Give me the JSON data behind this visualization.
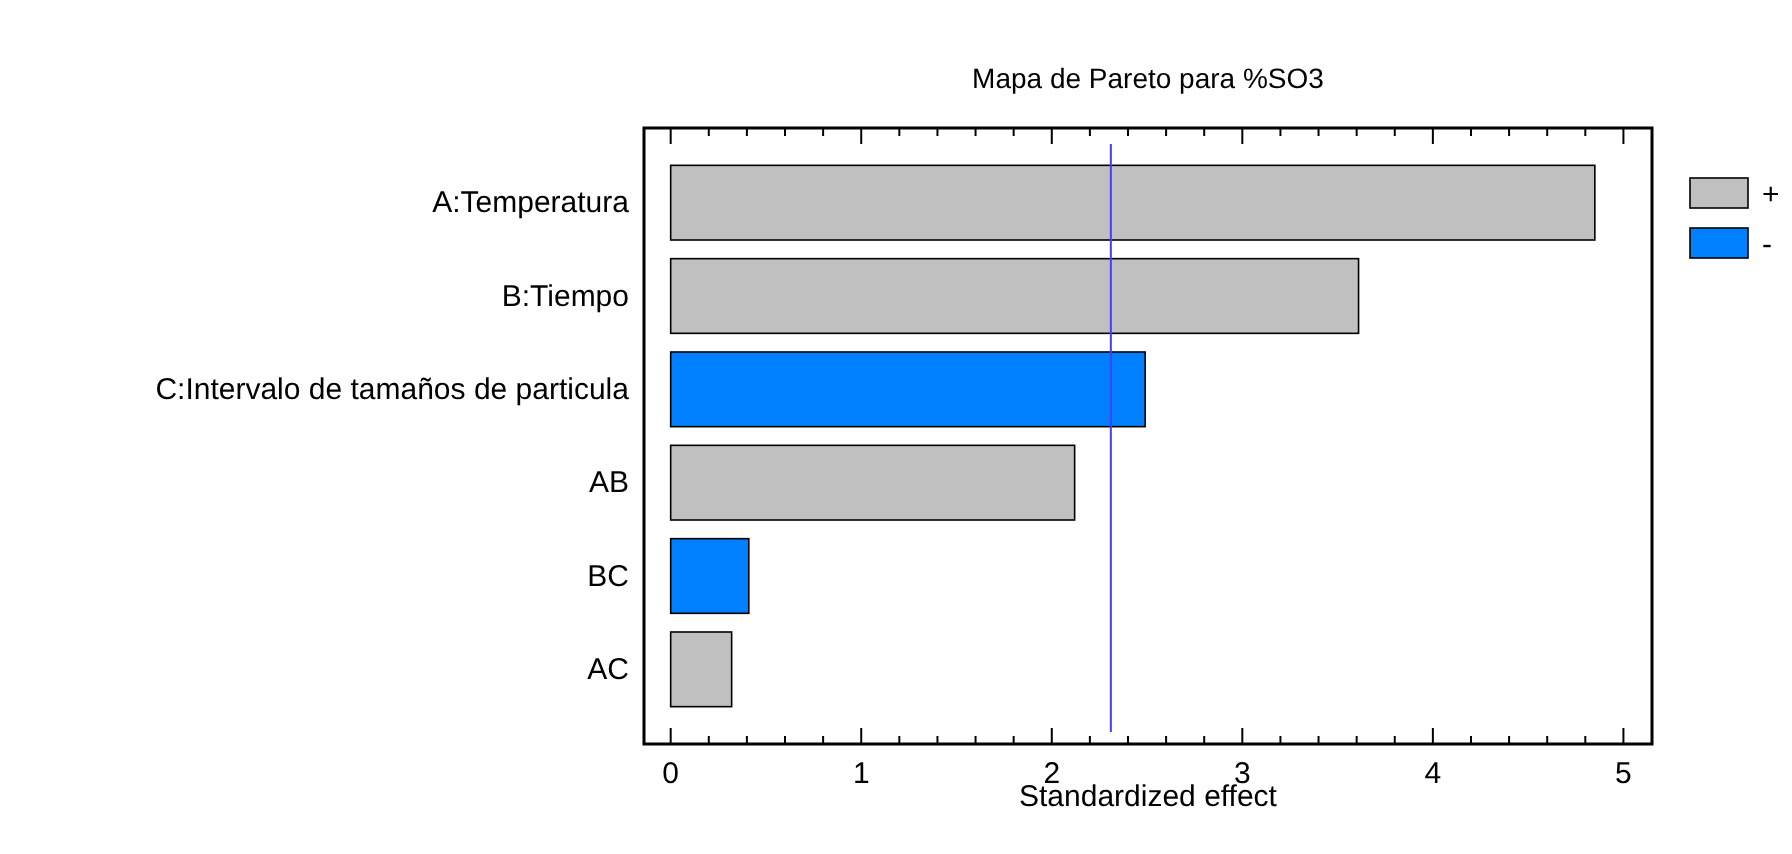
{
  "chart_data": {
    "type": "bar",
    "orientation": "horizontal",
    "title": "Mapa de Pareto para %SO3",
    "xlabel": "Standardized effect",
    "categories": [
      "A:Temperatura",
      "B:Tiempo",
      "C:Intervalo de tamaños de particula",
      "AB",
      "BC",
      "AC"
    ],
    "series": [
      {
        "name": "+",
        "color": "#c0c0c0",
        "values": [
          4.85,
          3.61,
          null,
          2.12,
          null,
          0.32
        ]
      },
      {
        "name": "-",
        "color": "#0080ff",
        "values": [
          null,
          null,
          2.49,
          null,
          0.41,
          null
        ]
      }
    ],
    "xlim": [
      -0.14,
      5.15
    ],
    "xticks": [
      0,
      {
        "value": 0.2,
        "label": null
      },
      {
        "value": 0.4,
        "label": null
      },
      {
        "value": 0.6,
        "label": null
      },
      {
        "value": 0.8,
        "label": null
      },
      1,
      {
        "value": 1.2,
        "label": null
      },
      {
        "value": 1.4,
        "label": null
      },
      {
        "value": 1.6,
        "label": null
      },
      {
        "value": 1.8,
        "label": null
      },
      2,
      {
        "value": 2.2,
        "label": null
      },
      {
        "value": 2.4,
        "label": null
      },
      {
        "value": 2.6,
        "label": null
      },
      {
        "value": 2.8,
        "label": null
      },
      3,
      {
        "value": 3.2,
        "label": null
      },
      {
        "value": 3.4,
        "label": null
      },
      {
        "value": 3.6,
        "label": null
      },
      {
        "value": 3.8,
        "label": null
      },
      4,
      {
        "value": 4.2,
        "label": null
      },
      {
        "value": 4.4,
        "label": null
      },
      {
        "value": 4.6,
        "label": null
      },
      {
        "value": 4.8,
        "label": null
      },
      5
    ],
    "ref_lines": [
      {
        "axis": "x",
        "value": 2.31,
        "color": "#4040ff"
      }
    ],
    "legend": "right",
    "grid": false
  }
}
